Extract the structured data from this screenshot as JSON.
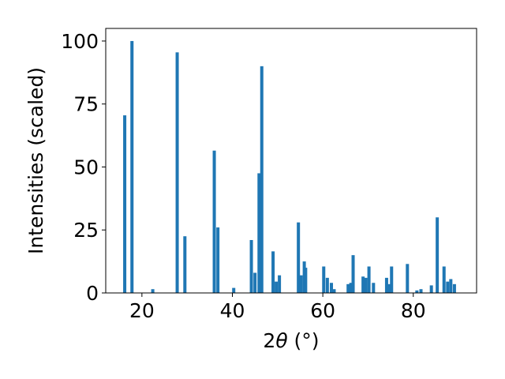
{
  "chart_data": {
    "type": "bar",
    "xlabel_prefix": "2",
    "xlabel_theta": "θ",
    "xlabel_unit": " (°)",
    "ylabel": "Intensities (scaled)",
    "xlim": [
      12,
      94
    ],
    "ylim": [
      0,
      105
    ],
    "xticks": [
      20,
      40,
      60,
      80
    ],
    "yticks": [
      0,
      25,
      50,
      75,
      100
    ],
    "bar_width": 0.7,
    "color": "#1f77b4",
    "x": [
      16.2,
      17.8,
      22.4,
      27.8,
      29.5,
      36.0,
      36.8,
      40.3,
      44.2,
      45.0,
      45.9,
      46.5,
      49.0,
      49.7,
      50.4,
      54.6,
      55.2,
      55.9,
      56.2,
      60.2,
      61.0,
      61.9,
      62.5,
      65.6,
      66.2,
      66.7,
      68.9,
      69.5,
      70.2,
      71.2,
      74.1,
      74.6,
      75.2,
      78.7,
      80.8,
      81.7,
      84.0,
      85.3,
      86.8,
      87.6,
      88.3,
      89.1
    ],
    "values": [
      70.5,
      100,
      1.5,
      95.5,
      22.5,
      56.5,
      26,
      2,
      21,
      8,
      47.5,
      90,
      16.5,
      4.5,
      7,
      28,
      7,
      12.5,
      10,
      10.5,
      6,
      4,
      1.5,
      3.5,
      4,
      15,
      6.5,
      6,
      10.5,
      4,
      6,
      3.5,
      10.5,
      11.5,
      1,
      1.5,
      3,
      30,
      10.5,
      4.5,
      5.5,
      3.5
    ]
  }
}
